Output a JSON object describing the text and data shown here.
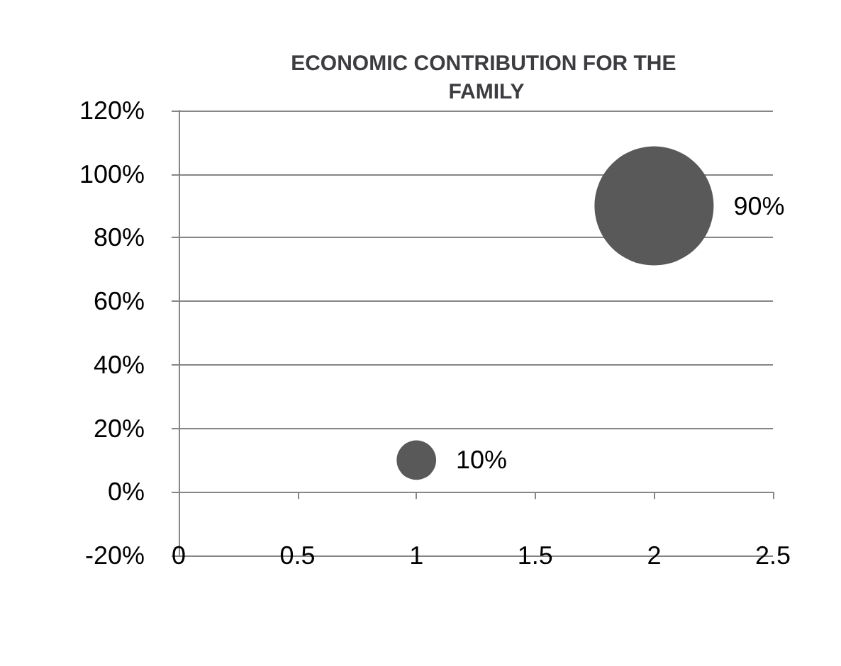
{
  "chart_data": {
    "type": "bubble",
    "title": "ECONOMIC CONTRIBUTION FOR THE FAMILY",
    "x": [
      1,
      2
    ],
    "series": [
      {
        "color": "#595959",
        "values": [
          10,
          90
        ],
        "sizes": [
          0.11,
          1
        ],
        "value_labels": [
          "10%",
          "90%"
        ]
      }
    ],
    "xlim": [
      0,
      2.5
    ],
    "xticks": [
      0,
      0.5,
      1,
      1.5,
      2,
      2.5
    ],
    "ylim": [
      -20,
      120
    ],
    "yticks": [
      {
        "value": -20,
        "label": "-20%"
      },
      {
        "value": 0,
        "label": "0%"
      },
      {
        "value": 20,
        "label": "20%"
      },
      {
        "value": 40,
        "label": "40%"
      },
      {
        "value": 60,
        "label": "60%"
      },
      {
        "value": 80,
        "label": "80%"
      },
      {
        "value": 100,
        "label": "100%"
      },
      {
        "value": 120,
        "label": "120%"
      }
    ],
    "grid": "y"
  }
}
